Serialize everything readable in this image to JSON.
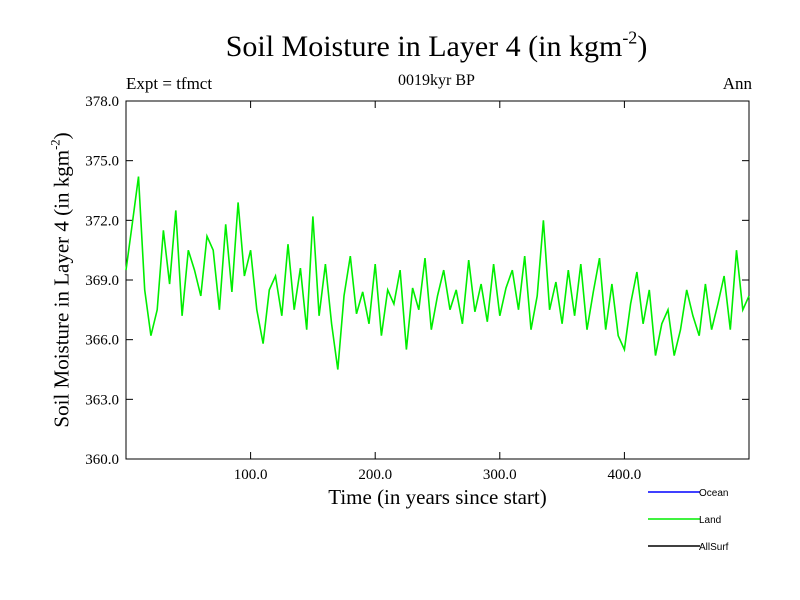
{
  "header": {
    "title_main": "Soil Moisture in Layer 4 (in kgm",
    "title_sup": "-2",
    "title_close": ")",
    "subtitle": "0019kyr BP",
    "expt_label": "Expt = tfmct",
    "season": "Ann"
  },
  "chart_data": {
    "type": "line",
    "xlabel": "Time (in years since start)",
    "ylabel_main": "Soil Moisture in Layer 4 (in kgm",
    "ylabel_sup": "-2",
    "ylabel_close": ")",
    "xlim": [
      0,
      500
    ],
    "ylim": [
      360,
      378
    ],
    "xticks": [
      100,
      200,
      300,
      400
    ],
    "xtick_labels": [
      "100.0",
      "200.0",
      "300.0",
      "400.0"
    ],
    "yticks": [
      360,
      363,
      366,
      369,
      372,
      375,
      378
    ],
    "ytick_labels": [
      "360.0",
      "363.0",
      "366.0",
      "369.0",
      "372.0",
      "375.0",
      "378.0"
    ],
    "legend_position": "bottom-right, below plot",
    "series": [
      {
        "name": "Land",
        "color": "#00ee00",
        "x": [
          0,
          5,
          10,
          15,
          20,
          25,
          30,
          35,
          40,
          45,
          50,
          55,
          60,
          65,
          70,
          75,
          80,
          85,
          90,
          95,
          100,
          105,
          110,
          115,
          120,
          125,
          130,
          135,
          140,
          145,
          150,
          155,
          160,
          165,
          170,
          175,
          180,
          185,
          190,
          195,
          200,
          205,
          210,
          215,
          220,
          225,
          230,
          235,
          240,
          245,
          250,
          255,
          260,
          265,
          270,
          275,
          280,
          285,
          290,
          295,
          300,
          305,
          310,
          315,
          320,
          325,
          330,
          335,
          340,
          345,
          350,
          355,
          360,
          365,
          370,
          375,
          380,
          385,
          390,
          395,
          400,
          405,
          410,
          415,
          420,
          425,
          430,
          435,
          440,
          445,
          450,
          455,
          460,
          465,
          470,
          475,
          480,
          485,
          490,
          495,
          500
        ],
        "values": [
          369.5,
          371.8,
          374.2,
          368.5,
          366.2,
          367.5,
          371.5,
          368.8,
          372.5,
          367.2,
          370.5,
          369.5,
          368.2,
          371.2,
          370.5,
          367.5,
          371.8,
          368.4,
          372.9,
          369.2,
          370.5,
          367.5,
          365.8,
          368.5,
          369.2,
          367.2,
          370.8,
          367.5,
          369.6,
          366.5,
          372.2,
          367.2,
          369.8,
          366.8,
          364.5,
          368.2,
          370.2,
          367.3,
          368.4,
          366.8,
          369.8,
          366.2,
          368.5,
          367.8,
          369.5,
          365.5,
          368.6,
          367.5,
          370.1,
          366.5,
          368.2,
          369.5,
          367.5,
          368.5,
          366.8,
          370.0,
          367.4,
          368.8,
          366.9,
          369.8,
          367.2,
          368.6,
          369.5,
          367.5,
          370.2,
          366.5,
          368.2,
          372.0,
          367.5,
          368.9,
          366.8,
          369.5,
          367.2,
          369.8,
          366.5,
          368.4,
          370.1,
          366.5,
          368.8,
          366.2,
          365.5,
          367.8,
          369.4,
          366.8,
          368.5,
          365.2,
          366.8,
          367.5,
          365.2,
          366.5,
          368.5,
          367.2,
          366.2,
          368.8,
          366.5,
          367.8,
          369.2,
          366.5,
          370.5,
          367.5,
          368.2
        ]
      }
    ],
    "legend": [
      {
        "name": "Ocean",
        "color": "#0000ff"
      },
      {
        "name": "Land",
        "color": "#00ee00"
      },
      {
        "name": "AllSurf",
        "color": "#000000"
      }
    ]
  }
}
